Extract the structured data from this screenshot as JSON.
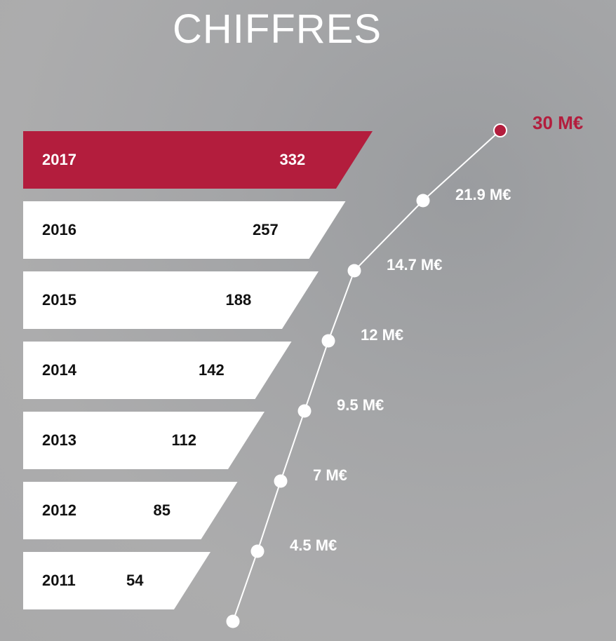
{
  "title": "CHIFFRES",
  "colors": {
    "accent": "#b31d3d",
    "bar": "#ffffff",
    "line": "#ffffff"
  },
  "chart_data": [
    {
      "type": "bar",
      "orientation": "horizontal",
      "title": "",
      "categories": [
        "2017",
        "2016",
        "2015",
        "2014",
        "2013",
        "2012",
        "2011"
      ],
      "values": [
        332,
        257,
        188,
        142,
        112,
        85,
        54
      ],
      "highlight": "2017"
    },
    {
      "type": "line",
      "title": "",
      "points": [
        {
          "label": "",
          "value": 0
        },
        {
          "label": "4.5 M€",
          "value": 4.5
        },
        {
          "label": "7 M€",
          "value": 7
        },
        {
          "label": "9.5 M€",
          "value": 9.5
        },
        {
          "label": "12 M€",
          "value": 12
        },
        {
          "label": "14.7 M€",
          "value": 14.7
        },
        {
          "label": "21.9 M€",
          "value": 21.9
        },
        {
          "label": "30 M€",
          "value": 30
        }
      ],
      "highlight_last": true
    }
  ]
}
